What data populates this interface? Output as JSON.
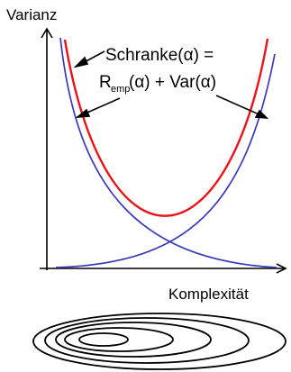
{
  "axes": {
    "y_label": "Varianz",
    "x_label": "Komplexität"
  },
  "equation": {
    "line1": "Schranke(α) =",
    "line2_r": "R",
    "line2_sub": "emp",
    "line2_rest": "(α) + Var(α)"
  },
  "colors": {
    "bound_curve": "#e8141c",
    "component_curves": "#3a3ab8",
    "axes": "#000000",
    "ellipses": "#000000"
  },
  "nested_ellipses_count": 5
}
